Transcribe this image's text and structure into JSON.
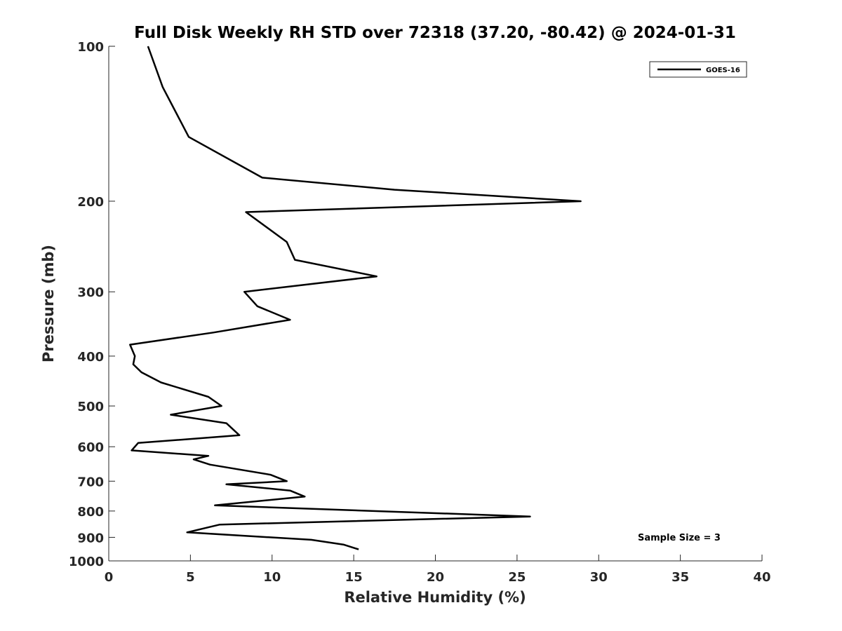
{
  "chart_data": {
    "type": "line",
    "title": "Full Disk Weekly RH STD over 72318 (37.20, -80.42) @ 2024-01-31",
    "xlabel": "Relative Humidity (%)",
    "ylabel": "Pressure (mb)",
    "xlim": [
      0,
      40
    ],
    "ylim": [
      100,
      1000
    ],
    "y_scale": "log",
    "y_reversed": true,
    "x_ticks": [
      0,
      5,
      10,
      15,
      20,
      25,
      30,
      35,
      40
    ],
    "y_ticks": [
      100,
      200,
      300,
      400,
      500,
      600,
      700,
      800,
      900,
      1000
    ],
    "grid": false,
    "legend": {
      "position": "top-right",
      "entries": [
        "GOES-16"
      ]
    },
    "annotation": "Sample Size = 3",
    "series": [
      {
        "name": "GOES-16",
        "color": "#000000",
        "points": [
          [
            2.4,
            100
          ],
          [
            3.3,
            120
          ],
          [
            4.9,
            150
          ],
          [
            9.4,
            180
          ],
          [
            17.5,
            190
          ],
          [
            28.9,
            200
          ],
          [
            8.4,
            210
          ],
          [
            10.9,
            240
          ],
          [
            11.4,
            260
          ],
          [
            16.4,
            280
          ],
          [
            8.3,
            300
          ],
          [
            9.1,
            320
          ],
          [
            11.1,
            340
          ],
          [
            6.4,
            360
          ],
          [
            1.3,
            380
          ],
          [
            1.6,
            400
          ],
          [
            1.5,
            415
          ],
          [
            2.0,
            430
          ],
          [
            3.2,
            450
          ],
          [
            6.1,
            480
          ],
          [
            6.9,
            500
          ],
          [
            3.8,
            520
          ],
          [
            7.2,
            540
          ],
          [
            8.0,
            570
          ],
          [
            1.8,
            590
          ],
          [
            1.4,
            610
          ],
          [
            6.1,
            625
          ],
          [
            5.2,
            635
          ],
          [
            6.2,
            650
          ],
          [
            9.9,
            680
          ],
          [
            10.9,
            700
          ],
          [
            7.2,
            710
          ],
          [
            11.1,
            730
          ],
          [
            12.0,
            750
          ],
          [
            6.5,
            780
          ],
          [
            25.8,
            820
          ],
          [
            6.8,
            850
          ],
          [
            4.8,
            880
          ],
          [
            12.4,
            910
          ],
          [
            14.4,
            930
          ],
          [
            15.3,
            950
          ]
        ]
      }
    ]
  }
}
